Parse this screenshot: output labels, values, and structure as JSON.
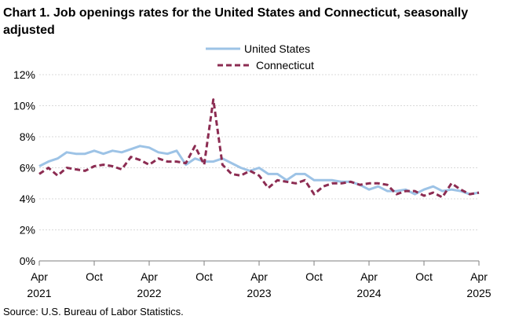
{
  "chart_data": {
    "type": "line",
    "title": "Chart 1. Job openings rates for the United States and Connecticut, seasonally adjusted",
    "source": "Source: U.S. Bureau of Labor Statistics.",
    "xlabel": "",
    "ylabel": "",
    "ylim": [
      0,
      12
    ],
    "y_ticks": [
      "0%",
      "2%",
      "4%",
      "6%",
      "8%",
      "10%",
      "12%"
    ],
    "y_tick_values": [
      0,
      2,
      4,
      6,
      8,
      10,
      12
    ],
    "x_ticks": [
      {
        "index": 0,
        "month": "Apr",
        "year": "2021"
      },
      {
        "index": 6,
        "month": "Oct",
        "year": ""
      },
      {
        "index": 12,
        "month": "Apr",
        "year": "2022"
      },
      {
        "index": 18,
        "month": "Oct",
        "year": ""
      },
      {
        "index": 24,
        "month": "Apr",
        "year": "2023"
      },
      {
        "index": 30,
        "month": "Oct",
        "year": ""
      },
      {
        "index": 36,
        "month": "Apr",
        "year": "2024"
      },
      {
        "index": 42,
        "month": "Oct",
        "year": ""
      },
      {
        "index": 48,
        "month": "Apr",
        "year": "2025"
      }
    ],
    "x_count": 49,
    "grid": true,
    "legend_position": "top-center",
    "series": [
      {
        "name": "United States",
        "color": "#9dc3e6",
        "style": "solid",
        "values": [
          6.1,
          6.4,
          6.6,
          7.0,
          6.9,
          6.9,
          7.1,
          6.9,
          7.1,
          7.0,
          7.2,
          7.4,
          7.3,
          7.0,
          6.9,
          7.1,
          6.2,
          6.6,
          6.4,
          6.4,
          6.6,
          6.3,
          6.0,
          5.8,
          6.0,
          5.6,
          5.6,
          5.2,
          5.6,
          5.6,
          5.2,
          5.2,
          5.2,
          5.1,
          5.1,
          4.9,
          4.6,
          4.8,
          4.5,
          4.5,
          4.6,
          4.3,
          4.6,
          4.8,
          4.5,
          4.6,
          4.5,
          4.3,
          4.4
        ]
      },
      {
        "name": "Connecticut",
        "color": "#8c2c52",
        "style": "dashed",
        "values": [
          5.6,
          6.0,
          5.5,
          6.0,
          5.9,
          5.8,
          6.1,
          6.2,
          6.1,
          5.9,
          6.7,
          6.5,
          6.2,
          6.6,
          6.4,
          6.4,
          6.3,
          7.4,
          6.2,
          10.4,
          6.2,
          5.6,
          5.5,
          5.8,
          5.5,
          4.7,
          5.2,
          5.1,
          5.0,
          5.2,
          4.3,
          4.8,
          5.0,
          5.0,
          5.1,
          4.9,
          5.0,
          5.0,
          4.9,
          4.3,
          4.5,
          4.5,
          4.2,
          4.4,
          4.1,
          5.0,
          4.6,
          4.3,
          4.4
        ]
      }
    ]
  }
}
